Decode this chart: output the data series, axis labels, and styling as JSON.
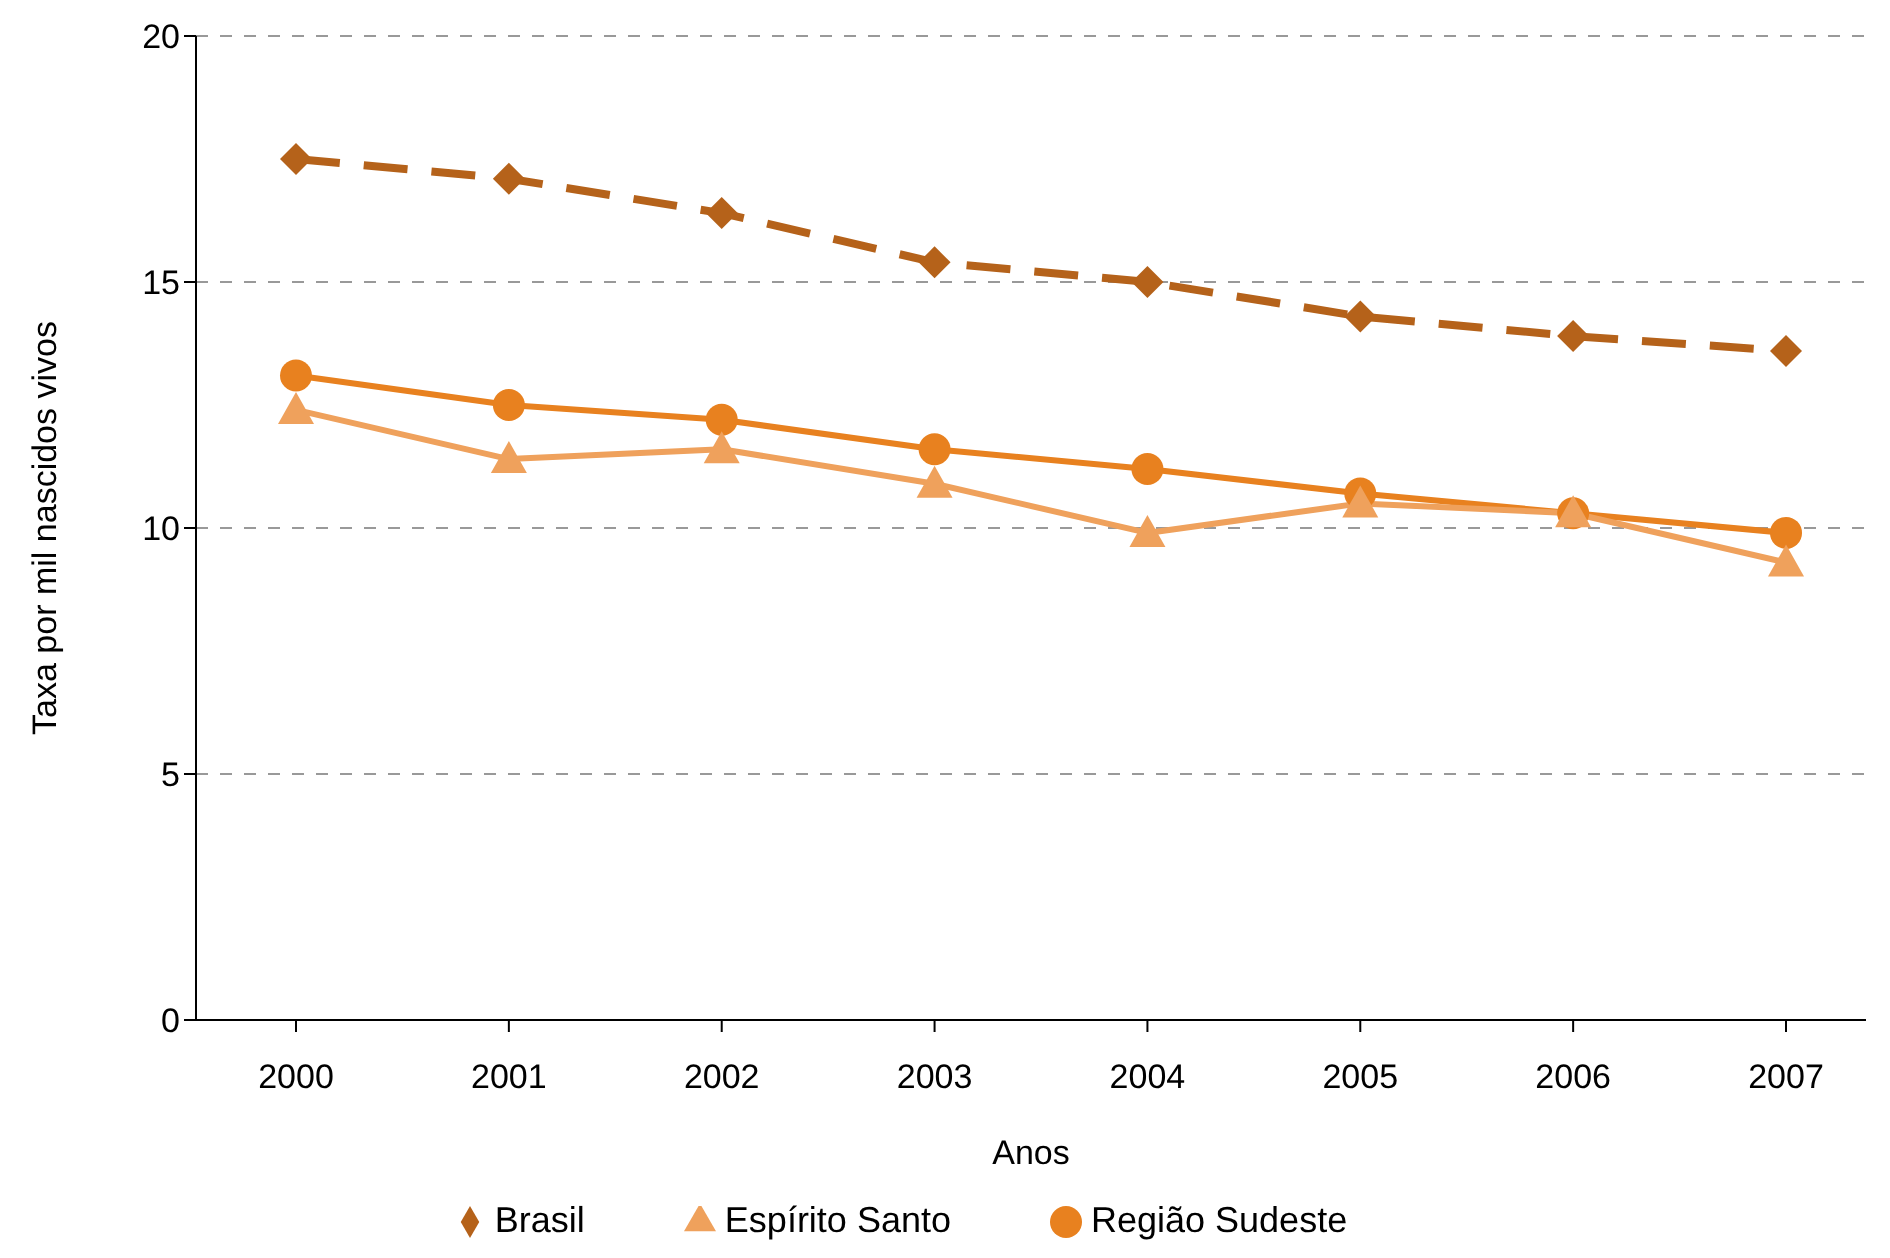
{
  "chart_data": {
    "type": "line",
    "xlabel": "Anos",
    "ylabel": "Taxa por mil nascidos vivos",
    "categories": [
      "2000",
      "2001",
      "2002",
      "2003",
      "2004",
      "2005",
      "2006",
      "2007"
    ],
    "series": [
      {
        "name": "Brasil",
        "color": "#b5621a",
        "marker": "diamond",
        "line_style": "dashed",
        "values": [
          17.5,
          17.1,
          16.4,
          15.4,
          15.0,
          14.3,
          13.9,
          13.6
        ]
      },
      {
        "name": "Região Sudeste",
        "color": "#e8811f",
        "marker": "circle",
        "line_style": "solid",
        "values": [
          13.1,
          12.5,
          12.2,
          11.6,
          11.2,
          10.7,
          10.3,
          9.9
        ]
      },
      {
        "name": "Espírito Santo",
        "color": "#efa15c",
        "marker": "triangle",
        "line_style": "solid",
        "values": [
          12.4,
          11.4,
          11.6,
          10.9,
          9.9,
          10.5,
          10.3,
          9.3
        ]
      }
    ],
    "ylim": [
      0,
      20
    ],
    "yticks": [
      0,
      5,
      10,
      15,
      20
    ],
    "grid": "y",
    "legend": "bottom"
  }
}
